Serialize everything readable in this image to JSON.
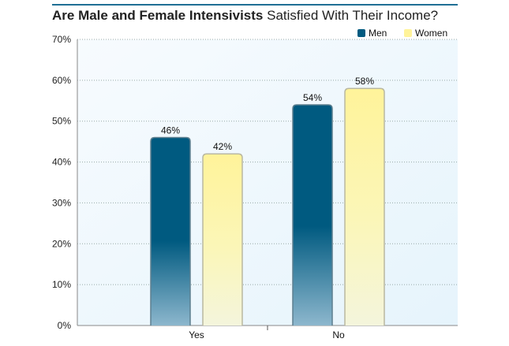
{
  "chart_data": {
    "type": "bar",
    "title_bold": "Are Male and Female Intensivists",
    "title_rest": "Satisfied With Their Income?",
    "categories": [
      "Yes",
      "No"
    ],
    "series": [
      {
        "name": "Men",
        "values": [
          46,
          54
        ],
        "labels": [
          "46%",
          "54%"
        ],
        "color": "#005a80"
      },
      {
        "name": "Women",
        "values": [
          42,
          58
        ],
        "labels": [
          "42%",
          "58%"
        ],
        "color": "#fff39a"
      }
    ],
    "ylim": [
      0,
      70
    ],
    "yticks": [
      "0%",
      "10%",
      "20%",
      "30%",
      "40%",
      "50%",
      "60%",
      "70%"
    ],
    "grid": true,
    "legend": "top-right",
    "background": "#eaf6fd"
  }
}
